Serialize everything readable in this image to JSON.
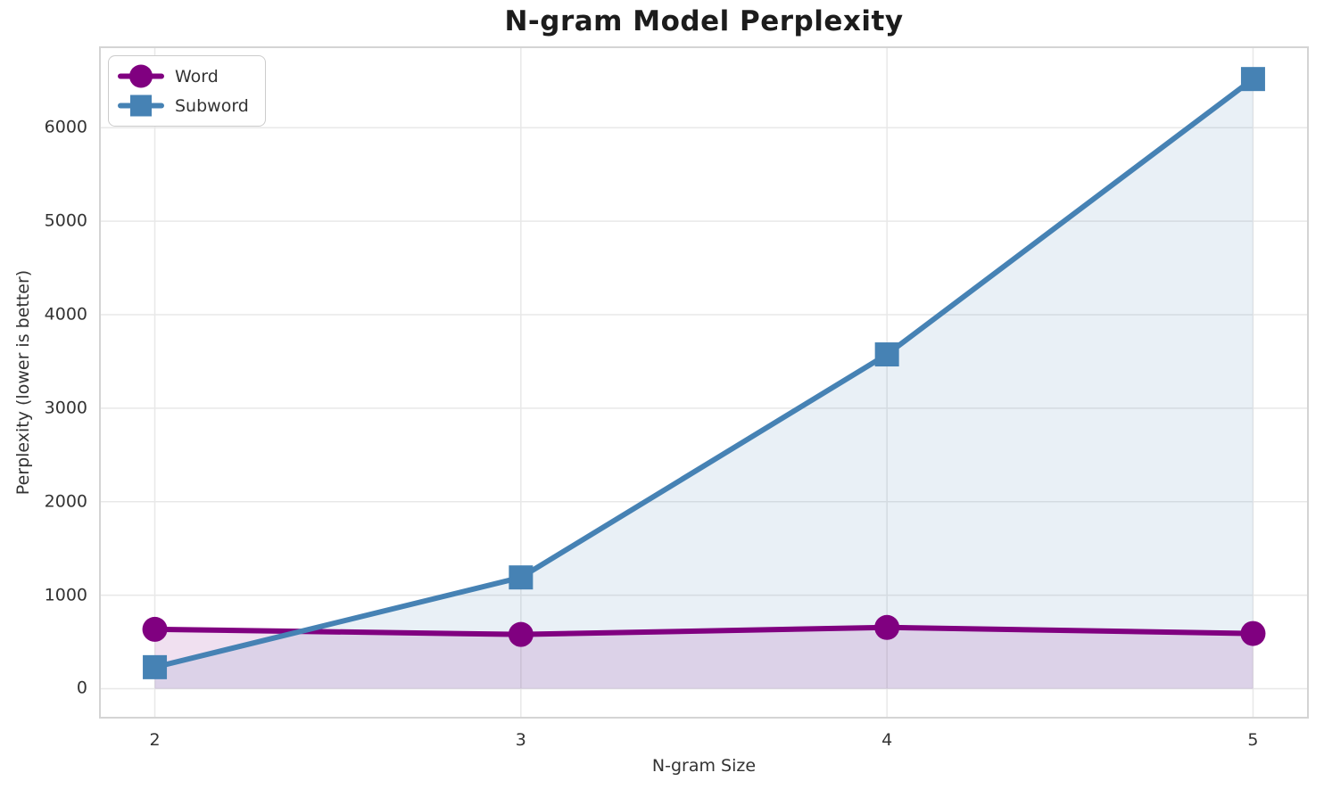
{
  "chart_data": {
    "type": "line",
    "title": "N-gram Model Perplexity",
    "xlabel": "N-gram Size",
    "ylabel": "Perplexity (lower is better)",
    "x": [
      2,
      3,
      4,
      5
    ],
    "xtick_labels": [
      "2",
      "3",
      "4",
      "5"
    ],
    "yticks": [
      0,
      1000,
      2000,
      3000,
      4000,
      5000,
      6000
    ],
    "ytick_labels": [
      "0",
      "1000",
      "2000",
      "3000",
      "4000",
      "5000",
      "6000"
    ],
    "xlim": [
      1.85,
      5.15
    ],
    "ylim": [
      -310,
      6860
    ],
    "grid": true,
    "legend_position": "upper left",
    "series": [
      {
        "name": "Word",
        "marker": "circle",
        "color": "#800080",
        "values": [
          635,
          580,
          655,
          590
        ],
        "fill_to_zero": true,
        "fill_opacity": 0.12
      },
      {
        "name": "Subword",
        "marker": "square",
        "color": "#4682B4",
        "values": [
          230,
          1190,
          3575,
          6520
        ],
        "fill_to_zero": true,
        "fill_opacity": 0.12
      }
    ],
    "style": {
      "grid_color": "#e8e8e8",
      "spine_color": "#d4d4d4",
      "text_color": "#333333",
      "title_color": "#1c1c1c",
      "background": "#ffffff"
    }
  }
}
